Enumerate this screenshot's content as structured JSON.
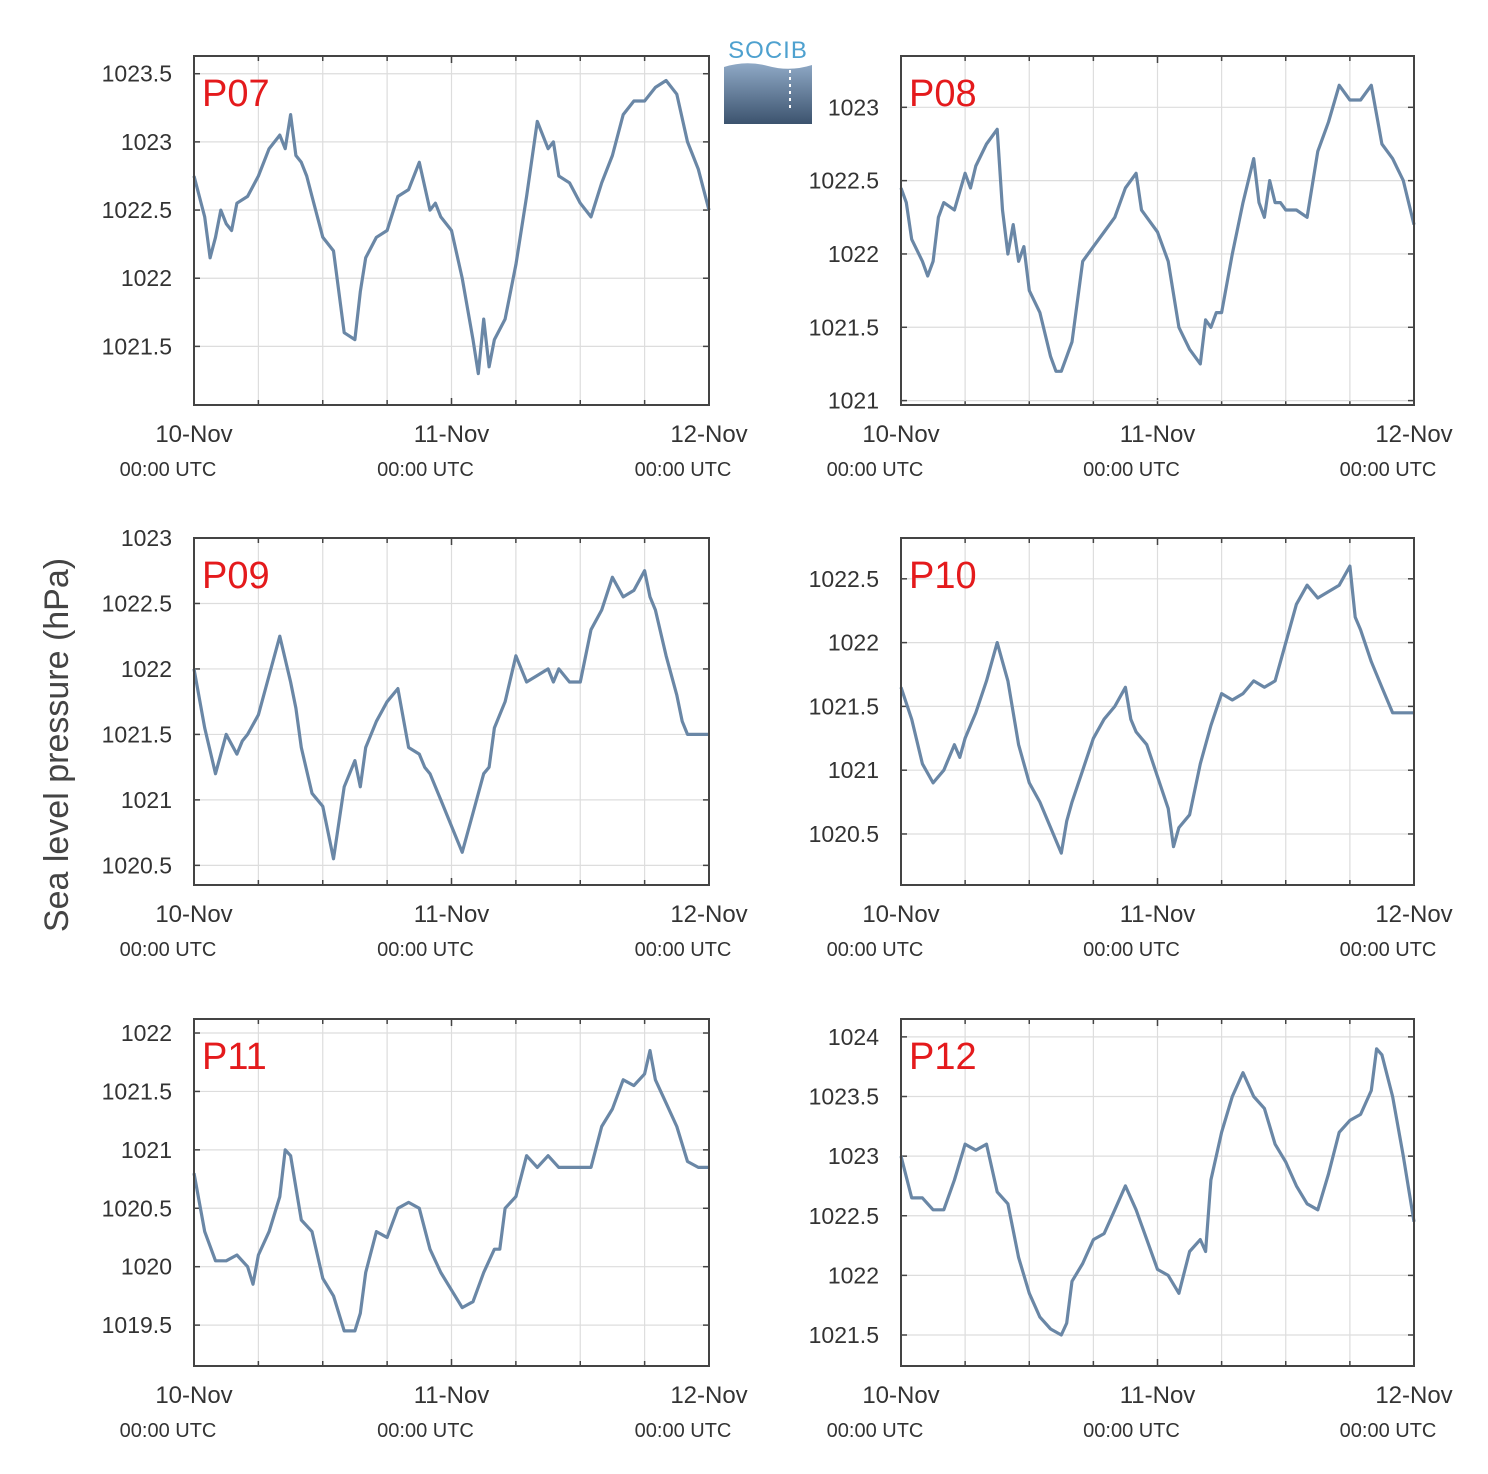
{
  "logo": {
    "text": "SOCIB"
  },
  "ylabel": "Sea level pressure (hPa)",
  "colors": {
    "line": "#6a87a6",
    "panel_label": "#e41a1c",
    "grid": "#dddddd",
    "axis": "#444444",
    "text": "#333333"
  },
  "chart_data": [
    {
      "type": "line",
      "label": "P07",
      "x_ticks": [
        "10-Nov",
        "11-Nov",
        "12-Nov"
      ],
      "x_tick_sub": "00:00 UTC",
      "xlim": [
        0,
        48
      ],
      "ylim": [
        1021.07,
        1023.63
      ],
      "y_ticks": [
        1021.5,
        1022,
        1022.5,
        1023,
        1023.5
      ],
      "y_tick_labels": [
        "1021.5",
        "1022",
        "1022.5",
        "1023",
        "1023.5"
      ],
      "x": [
        0,
        1,
        1.5,
        2,
        2.5,
        3,
        3.5,
        4,
        5,
        6,
        7,
        8,
        8.5,
        9,
        9.5,
        10,
        10.5,
        11,
        12,
        13,
        14,
        15,
        15.5,
        16,
        17,
        18,
        19,
        20,
        21,
        22,
        22.5,
        23,
        24,
        25,
        26,
        26.5,
        27,
        27.5,
        28,
        29,
        30,
        31,
        32,
        33,
        33.5,
        34,
        35,
        36,
        37,
        38,
        39,
        40,
        41,
        42,
        43,
        44,
        45,
        46,
        46.5,
        47,
        48
      ],
      "y": [
        1022.75,
        1022.45,
        1022.15,
        1022.3,
        1022.5,
        1022.4,
        1022.35,
        1022.55,
        1022.6,
        1022.75,
        1022.95,
        1023.05,
        1022.95,
        1023.2,
        1022.9,
        1022.85,
        1022.75,
        1022.6,
        1022.3,
        1022.2,
        1021.6,
        1021.55,
        1021.9,
        1022.15,
        1022.3,
        1022.35,
        1022.6,
        1022.65,
        1022.85,
        1022.5,
        1022.55,
        1022.45,
        1022.35,
        1022.0,
        1021.55,
        1021.3,
        1021.7,
        1021.35,
        1021.55,
        1021.7,
        1022.1,
        1022.6,
        1023.15,
        1022.95,
        1023.0,
        1022.75,
        1022.7,
        1022.55,
        1022.45,
        1022.7,
        1022.9,
        1023.2,
        1023.3,
        1023.3,
        1023.4,
        1023.45,
        1023.35,
        1023.0,
        1022.9,
        1022.8,
        1022.5
      ]
    },
    {
      "type": "line",
      "label": "P08",
      "x_ticks": [
        "10-Nov",
        "11-Nov",
        "12-Nov"
      ],
      "x_tick_sub": "00:00 UTC",
      "xlim": [
        0,
        48
      ],
      "ylim": [
        1020.97,
        1023.35
      ],
      "y_ticks": [
        1021,
        1021.5,
        1022,
        1022.5,
        1023
      ],
      "y_tick_labels": [
        "1021",
        "1021.5",
        "1022",
        "1022.5",
        "1023"
      ],
      "x": [
        0,
        0.5,
        1,
        2,
        2.5,
        3,
        3.5,
        4,
        5,
        6,
        6.5,
        7,
        8,
        9,
        9.5,
        10,
        10.5,
        11,
        11.5,
        12,
        13,
        14,
        14.5,
        15,
        15.5,
        16,
        17,
        18,
        19,
        20,
        21,
        22,
        22.5,
        23,
        24,
        25,
        26,
        27,
        28,
        28.5,
        29,
        29.5,
        30,
        31,
        32,
        33,
        33.5,
        34,
        34.5,
        35,
        35.5,
        36,
        37,
        38,
        39,
        40,
        41,
        42,
        42.5,
        43,
        44,
        45,
        46,
        47,
        48
      ],
      "y": [
        1022.45,
        1022.35,
        1022.1,
        1021.95,
        1021.85,
        1021.95,
        1022.25,
        1022.35,
        1022.3,
        1022.55,
        1022.45,
        1022.6,
        1022.75,
        1022.85,
        1022.3,
        1022.0,
        1022.2,
        1021.95,
        1022.05,
        1021.75,
        1021.6,
        1021.3,
        1021.2,
        1021.2,
        1021.3,
        1021.4,
        1021.95,
        1022.05,
        1022.15,
        1022.25,
        1022.45,
        1022.55,
        1022.3,
        1022.25,
        1022.15,
        1021.95,
        1021.5,
        1021.35,
        1021.25,
        1021.55,
        1021.5,
        1021.6,
        1021.6,
        1022.0,
        1022.35,
        1022.65,
        1022.35,
        1022.25,
        1022.5,
        1022.35,
        1022.35,
        1022.3,
        1022.3,
        1022.25,
        1022.7,
        1022.9,
        1023.15,
        1023.05,
        1023.05,
        1023.05,
        1023.15,
        1022.75,
        1022.65,
        1022.5,
        1022.2
      ]
    },
    {
      "type": "line",
      "label": "P09",
      "x_ticks": [
        "10-Nov",
        "11-Nov",
        "12-Nov"
      ],
      "x_tick_sub": "00:00 UTC",
      "xlim": [
        0,
        48
      ],
      "ylim": [
        1020.35,
        1023.0
      ],
      "y_ticks": [
        1020.5,
        1021,
        1021.5,
        1022,
        1022.5,
        1023
      ],
      "y_tick_labels": [
        "1020.5",
        "1021",
        "1021.5",
        "1022",
        "1022.5",
        "1023"
      ],
      "x": [
        0,
        1,
        2,
        3,
        4,
        4.5,
        5,
        6,
        7,
        8,
        9,
        9.5,
        10,
        11,
        12,
        13,
        14,
        15,
        15.5,
        16,
        17,
        18,
        19,
        20,
        21,
        21.5,
        22,
        23,
        24,
        25,
        26,
        27,
        27.5,
        28,
        29,
        30,
        31,
        32,
        33,
        33.5,
        34,
        35,
        36,
        37,
        38,
        39,
        40,
        41,
        42,
        42.5,
        43,
        44,
        45,
        45.5,
        46,
        47,
        48
      ],
      "y": [
        1022.0,
        1021.55,
        1021.2,
        1021.5,
        1021.35,
        1021.45,
        1021.5,
        1021.65,
        1021.95,
        1022.25,
        1021.9,
        1021.7,
        1021.4,
        1021.05,
        1020.95,
        1020.55,
        1021.1,
        1021.3,
        1021.1,
        1021.4,
        1021.6,
        1021.75,
        1021.85,
        1021.4,
        1021.35,
        1021.25,
        1021.2,
        1021.0,
        1020.8,
        1020.6,
        1020.9,
        1021.2,
        1021.25,
        1021.55,
        1021.75,
        1022.1,
        1021.9,
        1021.95,
        1022.0,
        1021.9,
        1022.0,
        1021.9,
        1021.9,
        1022.3,
        1022.45,
        1022.7,
        1022.55,
        1022.6,
        1022.75,
        1022.55,
        1022.45,
        1022.1,
        1021.8,
        1021.6,
        1021.5,
        1021.5,
        1021.5
      ]
    },
    {
      "type": "line",
      "label": "P10",
      "x_ticks": [
        "10-Nov",
        "11-Nov",
        "12-Nov"
      ],
      "x_tick_sub": "00:00 UTC",
      "xlim": [
        0,
        48
      ],
      "ylim": [
        1020.1,
        1022.82
      ],
      "y_ticks": [
        1020.5,
        1021,
        1021.5,
        1022,
        1022.5
      ],
      "y_tick_labels": [
        "1020.5",
        "1021",
        "1021.5",
        "1022",
        "1022.5"
      ],
      "x": [
        0,
        1,
        2,
        3,
        4,
        5,
        5.5,
        6,
        7,
        8,
        9,
        9.5,
        10,
        11,
        12,
        13,
        14,
        15,
        15.5,
        16,
        17,
        18,
        19,
        20,
        21,
        21.5,
        22,
        23,
        24,
        25,
        25.5,
        26,
        27,
        28,
        29,
        30,
        31,
        32,
        33,
        34,
        35,
        36,
        37,
        38,
        39,
        40,
        41,
        42,
        42.5,
        43,
        44,
        45,
        46,
        47,
        48
      ],
      "y": [
        1021.65,
        1021.4,
        1021.05,
        1020.9,
        1021.0,
        1021.2,
        1021.1,
        1021.25,
        1021.45,
        1021.7,
        1022.0,
        1021.85,
        1021.7,
        1021.2,
        1020.9,
        1020.75,
        1020.55,
        1020.35,
        1020.6,
        1020.75,
        1021.0,
        1021.25,
        1021.4,
        1021.5,
        1021.65,
        1021.4,
        1021.3,
        1021.2,
        1020.95,
        1020.7,
        1020.4,
        1020.55,
        1020.65,
        1021.05,
        1021.35,
        1021.6,
        1021.55,
        1021.6,
        1021.7,
        1021.65,
        1021.7,
        1022.0,
        1022.3,
        1022.45,
        1022.35,
        1022.4,
        1022.45,
        1022.6,
        1022.2,
        1022.1,
        1021.85,
        1021.65,
        1021.45,
        1021.45,
        1021.45
      ]
    },
    {
      "type": "line",
      "label": "P11",
      "x_ticks": [
        "10-Nov",
        "11-Nov",
        "12-Nov"
      ],
      "x_tick_sub": "00:00 UTC",
      "xlim": [
        0,
        48
      ],
      "ylim": [
        1019.15,
        1022.12
      ],
      "y_ticks": [
        1019.5,
        1020,
        1020.5,
        1021,
        1021.5,
        1022
      ],
      "y_tick_labels": [
        "1019.5",
        "1020",
        "1020.5",
        "1021",
        "1021.5",
        "1022"
      ],
      "x": [
        0,
        1,
        2,
        3,
        4,
        5,
        5.5,
        6,
        7,
        8,
        8.5,
        9,
        10,
        11,
        12,
        13,
        14,
        15,
        15.5,
        16,
        17,
        18,
        19,
        20,
        21,
        22,
        23,
        24,
        25,
        26,
        27,
        28,
        28.5,
        29,
        30,
        31,
        32,
        33,
        34,
        35,
        36,
        37,
        38,
        39,
        40,
        41,
        42,
        42.5,
        43,
        44,
        45,
        46,
        47,
        48
      ],
      "y": [
        1020.8,
        1020.3,
        1020.05,
        1020.05,
        1020.1,
        1020.0,
        1019.85,
        1020.1,
        1020.3,
        1020.6,
        1021.0,
        1020.95,
        1020.4,
        1020.3,
        1019.9,
        1019.75,
        1019.45,
        1019.45,
        1019.6,
        1019.95,
        1020.3,
        1020.25,
        1020.5,
        1020.55,
        1020.5,
        1020.15,
        1019.95,
        1019.8,
        1019.65,
        1019.7,
        1019.95,
        1020.15,
        1020.15,
        1020.5,
        1020.6,
        1020.95,
        1020.85,
        1020.95,
        1020.85,
        1020.85,
        1020.85,
        1020.85,
        1021.2,
        1021.35,
        1021.6,
        1021.55,
        1021.65,
        1021.85,
        1021.6,
        1021.4,
        1021.2,
        1020.9,
        1020.85,
        1020.85
      ]
    },
    {
      "type": "line",
      "label": "P12",
      "x_ticks": [
        "10-Nov",
        "11-Nov",
        "12-Nov"
      ],
      "x_tick_sub": "00:00 UTC",
      "xlim": [
        0,
        48
      ],
      "ylim": [
        1021.24,
        1024.15
      ],
      "y_ticks": [
        1021.5,
        1022,
        1022.5,
        1023,
        1023.5,
        1024
      ],
      "y_tick_labels": [
        "1021.5",
        "1022",
        "1022.5",
        "1023",
        "1023.5",
        "1024"
      ],
      "x": [
        0,
        1,
        2,
        3,
        4,
        5,
        6,
        7,
        8,
        9,
        10,
        11,
        12,
        13,
        14,
        15,
        15.5,
        16,
        17,
        18,
        19,
        20,
        21,
        22,
        23,
        24,
        25,
        26,
        27,
        28,
        28.5,
        29,
        30,
        31,
        32,
        33,
        34,
        35,
        36,
        37,
        38,
        39,
        40,
        41,
        42,
        43,
        44,
        44.5,
        45,
        46,
        47,
        48
      ],
      "y": [
        1023.0,
        1022.65,
        1022.65,
        1022.55,
        1022.55,
        1022.8,
        1023.1,
        1023.05,
        1023.1,
        1022.7,
        1022.6,
        1022.15,
        1021.85,
        1021.65,
        1021.55,
        1021.5,
        1021.6,
        1021.95,
        1022.1,
        1022.3,
        1022.35,
        1022.55,
        1022.75,
        1022.55,
        1022.3,
        1022.05,
        1022.0,
        1021.85,
        1022.2,
        1022.3,
        1022.2,
        1022.8,
        1023.2,
        1023.5,
        1023.7,
        1023.5,
        1023.4,
        1023.1,
        1022.95,
        1022.75,
        1022.6,
        1022.55,
        1022.85,
        1023.2,
        1023.3,
        1023.35,
        1023.55,
        1023.9,
        1023.85,
        1023.5,
        1023.0,
        1022.45
      ]
    }
  ]
}
